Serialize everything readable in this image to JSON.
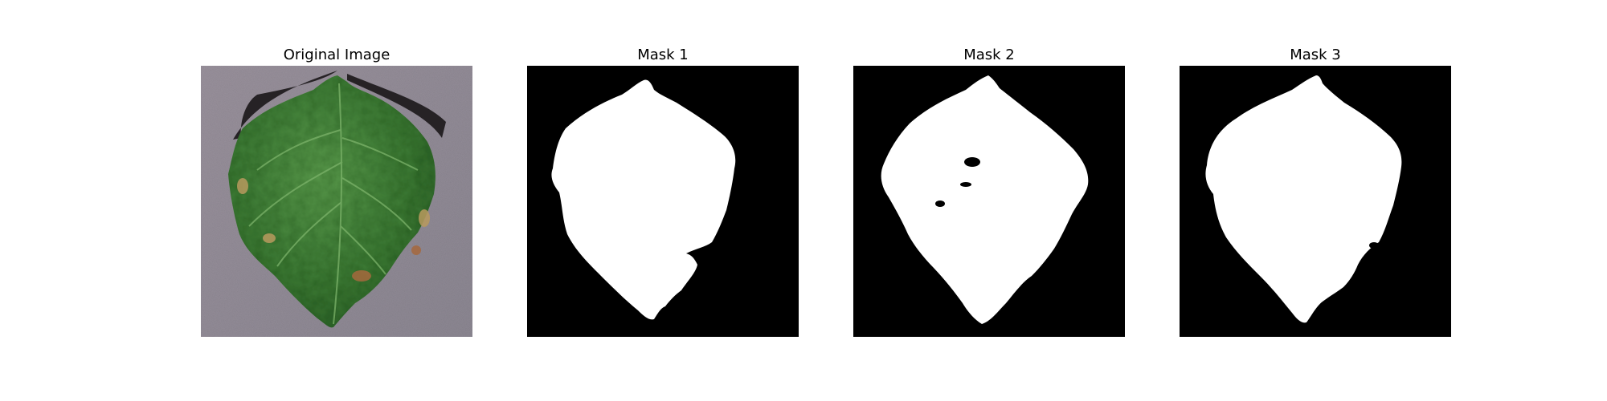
{
  "figure": {
    "panels": [
      {
        "title": "Original Image",
        "kind": "photo",
        "subject": "leaf-photo"
      },
      {
        "title": "Mask 1",
        "kind": "mask"
      },
      {
        "title": "Mask 2",
        "kind": "mask"
      },
      {
        "title": "Mask 3",
        "kind": "mask"
      }
    ]
  },
  "colors": {
    "background": "#ffffff",
    "mask_background": "#000000",
    "mask_foreground": "#ffffff",
    "leaf_green": "#3f7f35",
    "surface_gray": "#8f8a93"
  }
}
